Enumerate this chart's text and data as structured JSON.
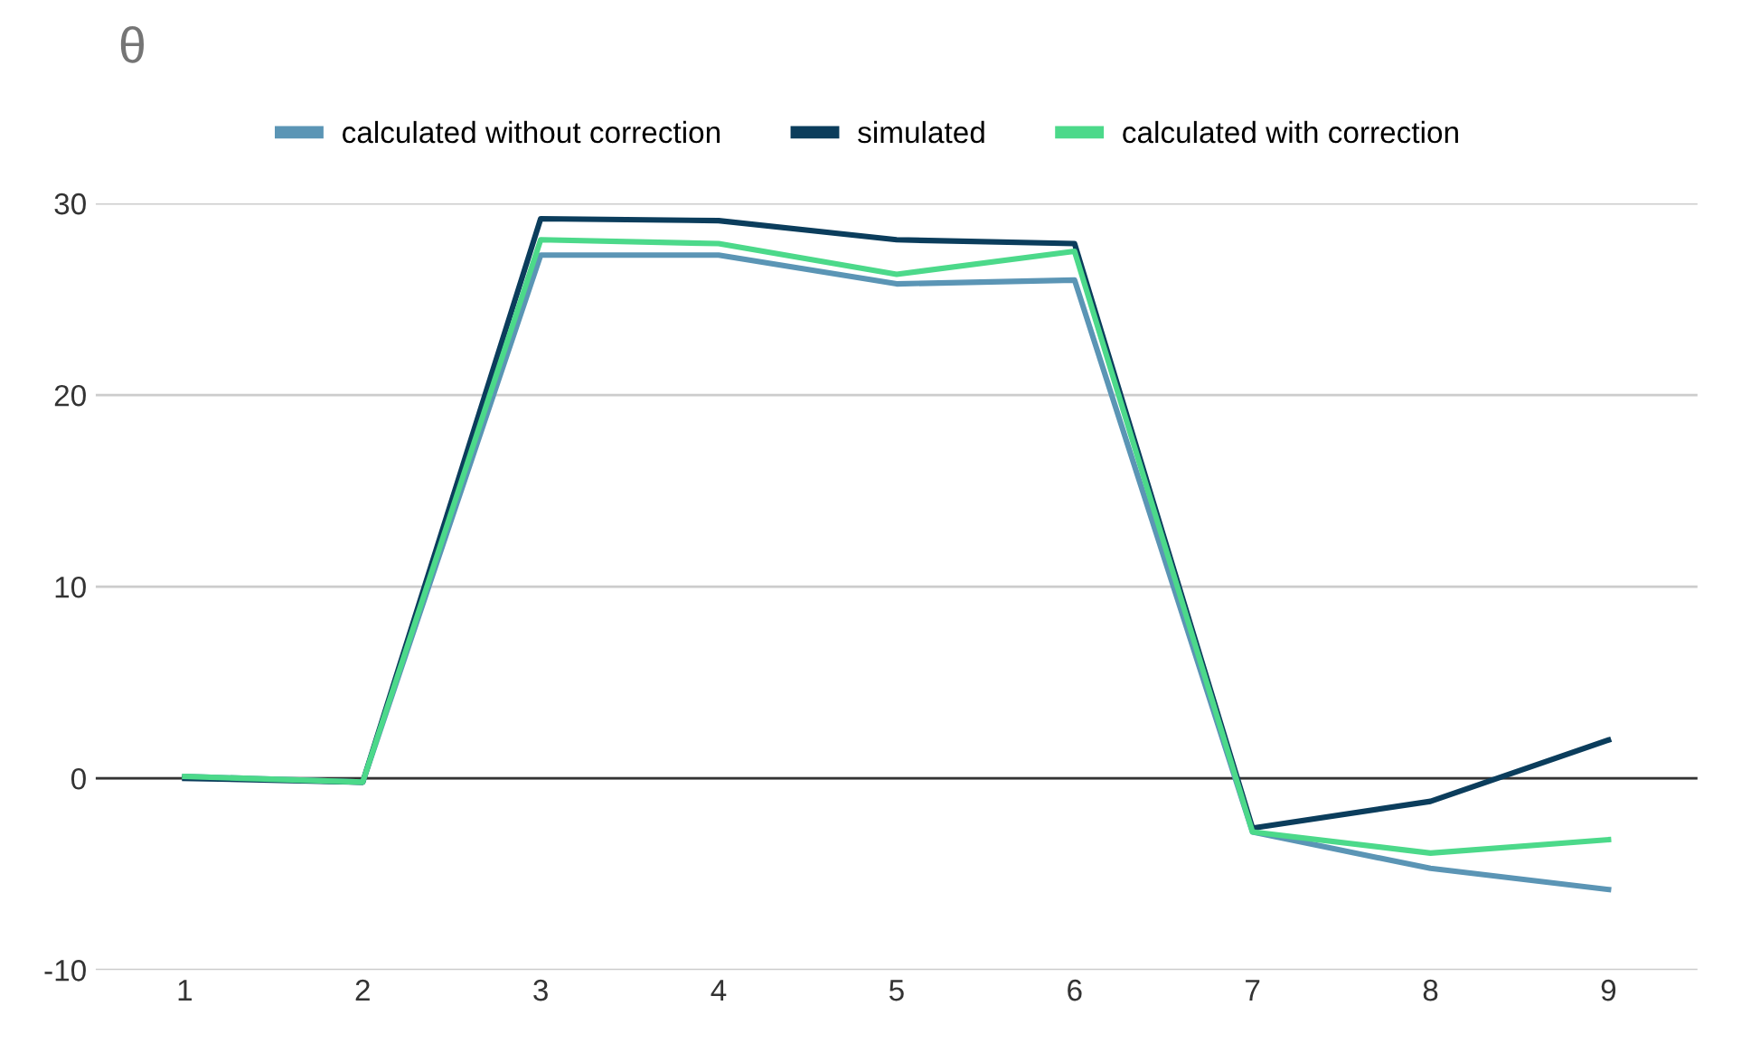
{
  "chart_data": {
    "type": "line",
    "title": "θ",
    "x": [
      1,
      2,
      3,
      4,
      5,
      6,
      7,
      8,
      9
    ],
    "series": [
      {
        "name": "calculated without correction",
        "color": "#5b95b5",
        "values": [
          0.1,
          -0.2,
          27.3,
          27.3,
          25.8,
          26.0,
          -2.8,
          -4.7,
          -5.8
        ]
      },
      {
        "name": "simulated",
        "color": "#0b3d5c",
        "values": [
          0.0,
          -0.2,
          29.2,
          29.1,
          28.1,
          27.9,
          -2.6,
          -1.2,
          2.0
        ]
      },
      {
        "name": "calculated with correction",
        "color": "#4cd98a",
        "values": [
          0.1,
          -0.2,
          28.1,
          27.9,
          26.3,
          27.5,
          -2.8,
          -3.9,
          -3.2
        ]
      }
    ],
    "xlim": [
      0.5,
      9.5
    ],
    "xticks": [
      1,
      2,
      3,
      4,
      5,
      6,
      7,
      8,
      9
    ],
    "ylim": [
      -10,
      30
    ],
    "yticks": [
      -10,
      0,
      10,
      20,
      30
    ],
    "ref_lines": [
      {
        "axis": "y",
        "value": 0,
        "color": "#333333"
      }
    ],
    "grid": "y",
    "legend": "top",
    "marker": "none",
    "line_style": "solid"
  }
}
